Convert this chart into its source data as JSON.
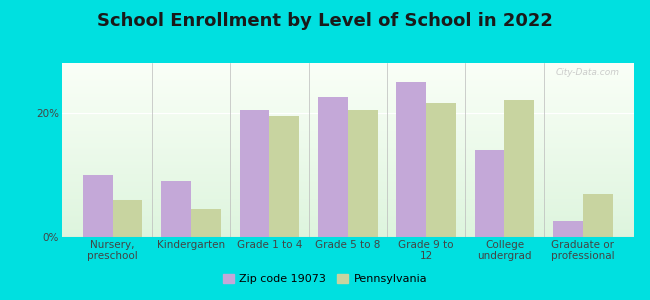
{
  "title": "School Enrollment by Level of School in 2022",
  "categories": [
    "Nursery,\npreschool",
    "Kindergarten",
    "Grade 1 to 4",
    "Grade 5 to 8",
    "Grade 9 to\n12",
    "College\nundergrad",
    "Graduate or\nprofessional"
  ],
  "zip_values": [
    10.0,
    9.0,
    20.5,
    22.5,
    25.0,
    14.0,
    2.5
  ],
  "pa_values": [
    6.0,
    4.5,
    19.5,
    20.5,
    21.5,
    22.0,
    7.0
  ],
  "zip_color": "#c4a8d8",
  "pa_color": "#c8d4a0",
  "background_color": "#00e0e0",
  "ylim": [
    0,
    28
  ],
  "yticks": [
    0,
    20
  ],
  "ytick_labels": [
    "0%",
    "20%"
  ],
  "watermark": "City-Data.com",
  "legend_zip": "Zip code 19073",
  "legend_pa": "Pennsylvania",
  "title_fontsize": 13,
  "label_fontsize": 7.5,
  "bar_width": 0.38
}
